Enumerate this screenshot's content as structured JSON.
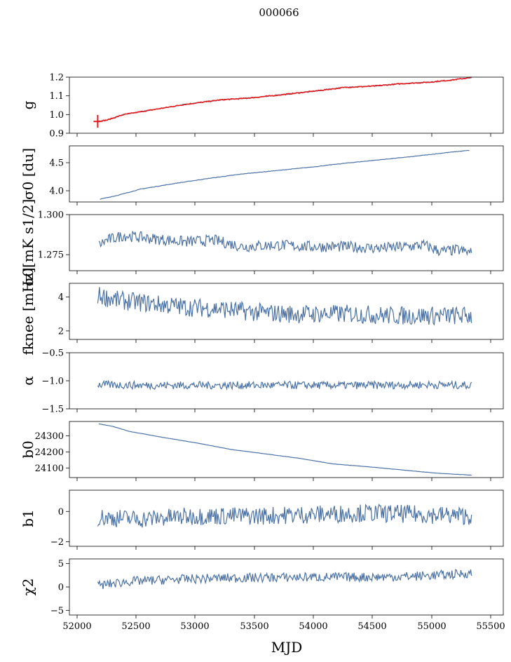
{
  "figure": {
    "suptitle": "000066",
    "xlabel": "MJD",
    "colors": {
      "series": "#4c72a4",
      "highlight": "#e41a1c"
    }
  },
  "chart_data": [
    {
      "type": "line",
      "ylabel": "g",
      "ylim": [
        0.9,
        1.2
      ],
      "yticks": [
        0.9,
        1.0,
        1.1,
        1.2
      ],
      "ytick_labels": [
        "0.9",
        "1.0",
        "1.1",
        "1.2"
      ],
      "xlim": [
        51870,
        55700
      ],
      "series": [
        {
          "color": "#4c72a4",
          "x": [
            52120,
            52200,
            52350,
            52600,
            52900,
            53200,
            53450,
            53700,
            54000,
            54300,
            54550,
            54800,
            55050,
            55250,
            55420
          ],
          "y": [
            0.963,
            0.97,
            1.0,
            1.025,
            1.055,
            1.078,
            1.088,
            1.103,
            1.123,
            1.145,
            1.152,
            1.165,
            1.173,
            1.185,
            1.198
          ]
        },
        {
          "color": "#e41a1c",
          "x": [
            52120,
            52200,
            52350,
            52600,
            52900,
            53200,
            53450,
            53700,
            54000,
            54300,
            54550,
            54800,
            55050,
            55250,
            55420
          ],
          "y": [
            0.963,
            0.97,
            1.0,
            1.025,
            1.055,
            1.078,
            1.088,
            1.103,
            1.123,
            1.145,
            1.152,
            1.165,
            1.173,
            1.185,
            1.198
          ]
        }
      ]
    },
    {
      "type": "line",
      "ylabel": "σ0 [du]",
      "ylim": [
        3.8,
        4.8
      ],
      "yticks": [
        4.0,
        4.5
      ],
      "ytick_labels": [
        "4.0",
        "4.5"
      ],
      "xlim": [
        51870,
        55700
      ],
      "series": [
        {
          "color": "#4c72a4",
          "x": [
            52140,
            52300,
            52500,
            52800,
            53100,
            53400,
            53700,
            54000,
            54300,
            54600,
            54900,
            55200,
            55400
          ],
          "y": [
            3.85,
            3.92,
            4.03,
            4.13,
            4.22,
            4.3,
            4.36,
            4.42,
            4.49,
            4.55,
            4.61,
            4.68,
            4.72
          ]
        }
      ]
    },
    {
      "type": "line",
      "ylabel": "σ0[mK s1/2]",
      "ylim": [
        1.265,
        1.3
      ],
      "yticks": [
        1.275,
        1.3
      ],
      "ytick_labels": [
        "1.275",
        "1.300"
      ],
      "xlim": [
        51870,
        55700
      ],
      "series": [
        {
          "color": "#4c72a4",
          "x": [
            52130,
            52200,
            52350,
            52600,
            52900,
            53150,
            53400,
            53700,
            54000,
            54300,
            54600,
            54850,
            55000,
            55150,
            55300,
            55420
          ],
          "y": [
            1.281,
            1.284,
            1.287,
            1.285,
            1.283,
            1.284,
            1.28,
            1.281,
            1.28,
            1.28,
            1.279,
            1.28,
            1.281,
            1.277,
            1.278,
            1.276
          ]
        }
      ]
    },
    {
      "type": "line",
      "ylabel": "fknee [mHz]",
      "ylim": [
        1.5,
        4.8
      ],
      "yticks": [
        2,
        4
      ],
      "ytick_labels": [
        "2",
        "4"
      ],
      "xlim": [
        51870,
        55700
      ],
      "series": [
        {
          "color": "#4c72a4",
          "x": [
            52120,
            52300,
            52600,
            52900,
            53200,
            53500,
            53800,
            54100,
            54400,
            54700,
            55000,
            55420
          ],
          "y": [
            4.1,
            3.8,
            3.6,
            3.4,
            3.3,
            3.1,
            3.0,
            3.0,
            3.0,
            2.9,
            2.9,
            2.9
          ]
        }
      ]
    },
    {
      "type": "line",
      "ylabel": "α",
      "ylim": [
        -1.5,
        -0.5
      ],
      "yticks": [
        -1.5,
        -1.0,
        -0.5
      ],
      "ytick_labels": [
        "−1.5",
        "−1.0",
        "−0.5"
      ],
      "xlim": [
        51870,
        55700
      ],
      "series": [
        {
          "color": "#4c72a4",
          "x": [
            52120,
            52500,
            53000,
            53500,
            54000,
            54500,
            55000,
            55420
          ],
          "y": [
            -1.07,
            -1.08,
            -1.08,
            -1.08,
            -1.08,
            -1.08,
            -1.07,
            -1.08
          ]
        }
      ]
    },
    {
      "type": "line",
      "ylabel": "b0",
      "ylim": [
        24040,
        24390
      ],
      "yticks": [
        24100,
        24200,
        24300
      ],
      "ytick_labels": [
        "24100",
        "24200",
        "24300"
      ],
      "xlim": [
        51870,
        55700
      ],
      "series": [
        {
          "color": "#4c72a4",
          "x": [
            52130,
            52250,
            52400,
            52700,
            53000,
            53300,
            53600,
            53900,
            54200,
            54500,
            54800,
            55100,
            55420
          ],
          "y": [
            24375,
            24360,
            24328,
            24290,
            24255,
            24215,
            24188,
            24160,
            24125,
            24108,
            24088,
            24068,
            24055
          ]
        }
      ]
    },
    {
      "type": "line",
      "ylabel": "b1",
      "ylim": [
        -2.3,
        1.4
      ],
      "yticks": [
        -2,
        0
      ],
      "ytick_labels": [
        "−2",
        "0"
      ],
      "xlim": [
        51870,
        55700
      ],
      "series": [
        {
          "color": "#4c72a4",
          "x": [
            52120,
            52500,
            53000,
            53500,
            54000,
            54500,
            55000,
            55420
          ],
          "y": [
            -0.4,
            -0.5,
            -0.3,
            -0.3,
            -0.2,
            -0.1,
            -0.2,
            -0.3
          ]
        }
      ]
    },
    {
      "type": "line",
      "ylabel": "χ2",
      "ylim": [
        -6,
        6
      ],
      "yticks": [
        -5,
        0,
        5
      ],
      "ytick_labels": [
        "−5",
        "0",
        "5"
      ],
      "xlim": [
        51870,
        55700
      ],
      "xticks": [
        52000,
        52500,
        53000,
        53500,
        54000,
        54500,
        55000,
        55500
      ],
      "xtick_labels": [
        "52000",
        "52500",
        "53000",
        "53500",
        "54000",
        "54500",
        "55000",
        "55500"
      ],
      "series": [
        {
          "color": "#4c72a4",
          "x": [
            52120,
            52400,
            52800,
            53200,
            53600,
            54000,
            54400,
            54800,
            55200,
            55420
          ],
          "y": [
            0.3,
            1.2,
            1.6,
            1.9,
            2.0,
            2.1,
            2.1,
            2.2,
            2.6,
            3.0
          ]
        }
      ]
    }
  ]
}
